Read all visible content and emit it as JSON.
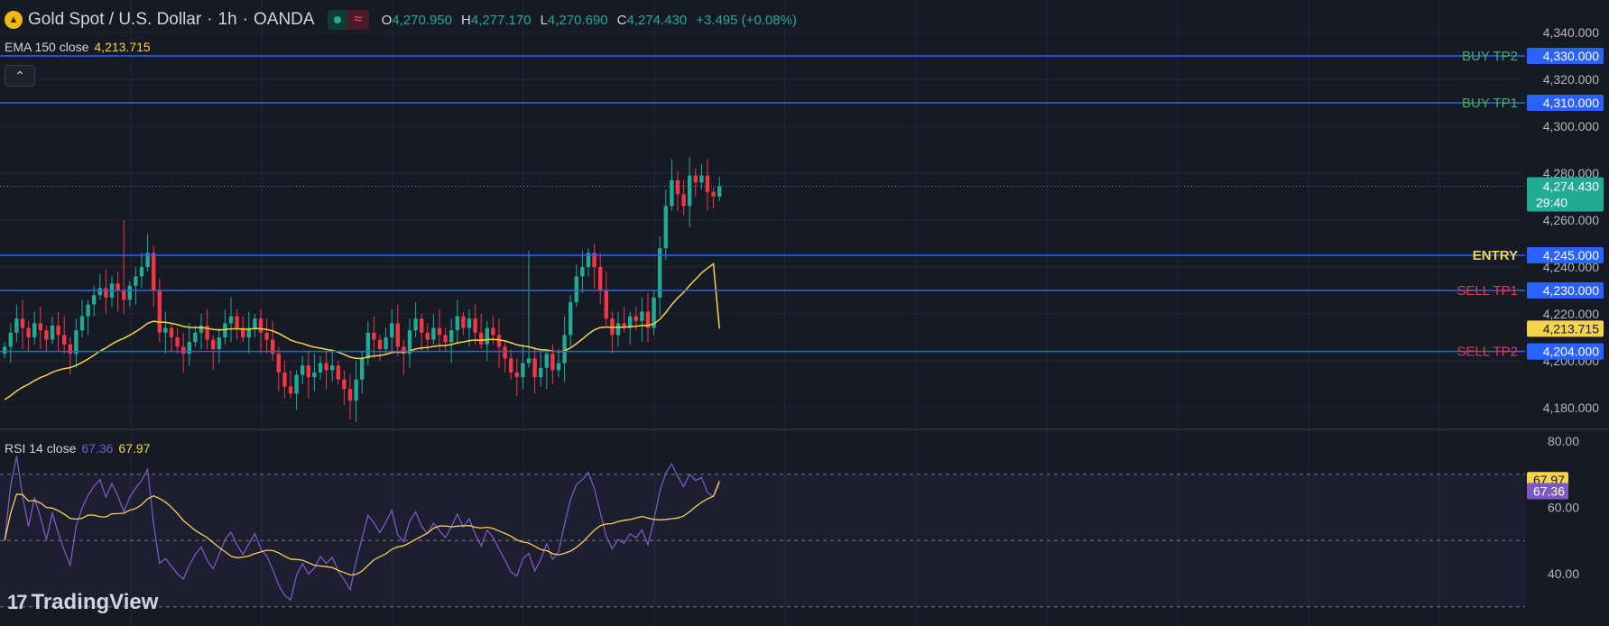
{
  "header": {
    "symbol": "Gold Spot / U.S. Dollar",
    "interval": "1h",
    "exchange": "OANDA",
    "open_label": "O",
    "open": "4,270.950",
    "high_label": "H",
    "high": "4,277.170",
    "low_label": "L",
    "low": "4,270.690",
    "close_label": "C",
    "close": "4,274.430",
    "change": "+3.495 (+0.08%)"
  },
  "ema_legend": {
    "label": "EMA 150 close",
    "value": "4,213.715"
  },
  "rsi_legend": {
    "label": "RSI 14 close",
    "rsi_value": "67.36",
    "ma_value": "67.97"
  },
  "brand": {
    "name": "TradingView"
  },
  "colors": {
    "background": "#161a25",
    "grid": "#232733",
    "bull": "#22ab94",
    "bear": "#f23645",
    "ema": "#f5d34b",
    "level_line": "#2962ff",
    "rsi_line": "#7e57c2",
    "rsi_ma": "#f5d34b",
    "buy_label": "#4caf50",
    "sell_label": "#f23645",
    "entry_label": "#f5d34b"
  },
  "chart_data": {
    "type": "candlestick",
    "title": "Gold Spot / U.S. Dollar · 1h · OANDA",
    "price_axis": {
      "ticks": [
        "4,180.000",
        "4,200.000",
        "4,220.000",
        "4,240.000",
        "4,260.000",
        "4,280.000",
        "4,300.000",
        "4,320.000",
        "4,340.000"
      ],
      "tick_values": [
        4180,
        4200,
        4220,
        4240,
        4260,
        4280,
        4300,
        4320,
        4340
      ],
      "range": [
        4170,
        4350
      ]
    },
    "levels": [
      {
        "name": "BUY TP2",
        "value": 4330.0,
        "label": "4,330.000",
        "kind": "buy"
      },
      {
        "name": "BUY TP1",
        "value": 4310.0,
        "label": "4,310.000",
        "kind": "buy"
      },
      {
        "name": "ENTRY",
        "value": 4245.0,
        "label": "4,245.000",
        "kind": "entry"
      },
      {
        "name": "SELL TP1",
        "value": 4230.0,
        "label": "4,230.000",
        "kind": "sell"
      },
      {
        "name": "SELL TP2",
        "value": 4204.0,
        "label": "4,204.000",
        "kind": "sell"
      }
    ],
    "current_price": {
      "value": 4274.43,
      "label": "4,274.430",
      "countdown": "29:40"
    },
    "ema_current": {
      "value": 4213.715,
      "label": "4,213.715"
    },
    "candle_closes": [
      4206,
      4212,
      4218,
      4214,
      4210,
      4216,
      4213,
      4209,
      4215,
      4211,
      4207,
      4203,
      4213,
      4219,
      4224,
      4228,
      4231,
      4227,
      4233,
      4230,
      4226,
      4232,
      4236,
      4240,
      4246,
      4230,
      4212,
      4214,
      4210,
      4206,
      4203,
      4208,
      4212,
      4215,
      4209,
      4205,
      4210,
      4216,
      4219,
      4214,
      4210,
      4214,
      4218,
      4212,
      4209,
      4203,
      4195,
      4189,
      4186,
      4194,
      4198,
      4193,
      4195,
      4199,
      4196,
      4198,
      4192,
      4188,
      4183,
      4192,
      4201,
      4212,
      4209,
      4205,
      4210,
      4216,
      4206,
      4203,
      4213,
      4218,
      4212,
      4209,
      4214,
      4211,
      4208,
      4213,
      4219,
      4214,
      4218,
      4212,
      4207,
      4214,
      4211,
      4206,
      4201,
      4195,
      4193,
      4199,
      4201,
      4193,
      4197,
      4203,
      4196,
      4199,
      4211,
      4225,
      4236,
      4240,
      4246,
      4240,
      4230,
      4218,
      4211,
      4216,
      4214,
      4219,
      4217,
      4221,
      4214,
      4227,
      4248,
      4266,
      4277,
      4271,
      4266,
      4279,
      4276,
      4279,
      4272,
      4270,
      4274.43
    ],
    "rsi": {
      "range": [
        30,
        82
      ],
      "ticks": [
        "40.00",
        "60.00",
        "80.00"
      ],
      "tick_values": [
        40,
        60,
        80
      ],
      "bands": [
        50,
        70
      ],
      "current_rsi": 67.36,
      "current_ma": 67.97,
      "rsi_label": "67.36",
      "ma_label": "67.97"
    }
  }
}
